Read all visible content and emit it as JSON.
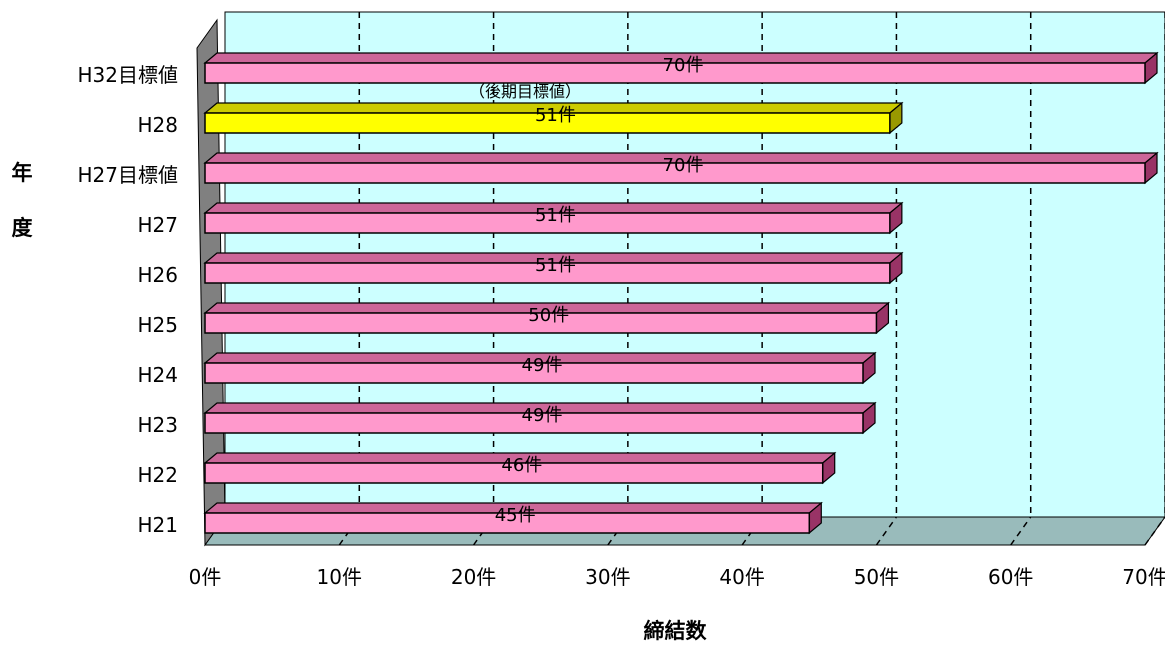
{
  "chart_data": {
    "type": "bar",
    "orientation": "horizontal",
    "style": "3d",
    "categories": [
      "H21",
      "H22",
      "H23",
      "H24",
      "H25",
      "H26",
      "H27",
      "H27目標値",
      "H28",
      "H32目標値"
    ],
    "values": [
      45,
      46,
      49,
      49,
      50,
      51,
      51,
      70,
      51,
      70
    ],
    "data_labels": [
      "45件",
      "46件",
      "49件",
      "49件",
      "50件",
      "51件",
      "51件",
      "70件",
      "51件",
      "70件"
    ],
    "highlight_category": "H28",
    "annotation": "（後期目標値）",
    "xlabel": "締結数",
    "ylabel": "年度",
    "xlim": [
      0,
      70
    ],
    "x_ticks": [
      0,
      10,
      20,
      30,
      40,
      50,
      60,
      70
    ],
    "x_tick_labels": [
      "0件",
      "10件",
      "20件",
      "30件",
      "40件",
      "50件",
      "60件",
      "70件"
    ],
    "colors": {
      "bar_front": "#ff99cc",
      "bar_top": "#cc6699",
      "bar_side": "#993366",
      "highlight_front": "#ffff00",
      "highlight_top": "#cccc00",
      "highlight_side": "#999900",
      "back_wall": "#ccffff",
      "floor": "#99bbbb",
      "side_wall": "#808080"
    },
    "grid": true
  }
}
